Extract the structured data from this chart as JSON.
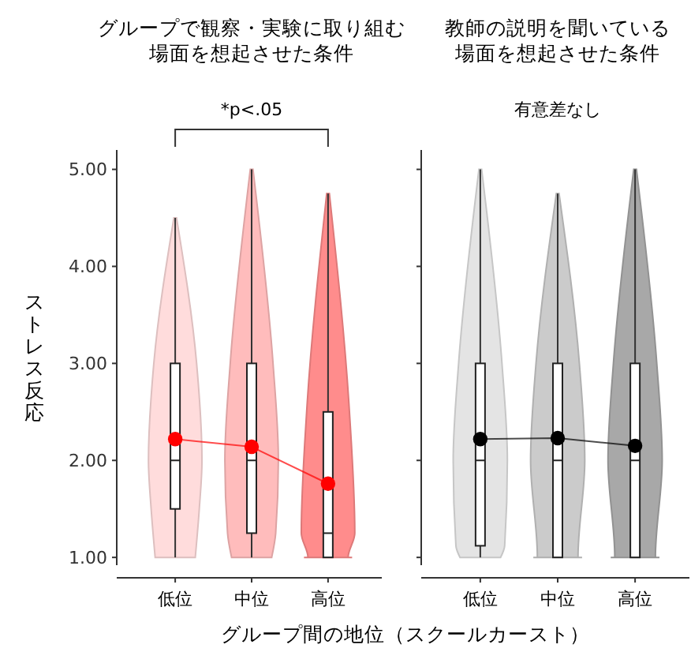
{
  "chart_data": [
    {
      "type": "box",
      "title": "グループで観察・実験に取り組む",
      "subtitle": "場面を想起させた条件",
      "xlabel": "グループ間の地位（スクールカースト）",
      "ylabel": "ストレス反応",
      "categories": [
        "低位",
        "中位",
        "高位"
      ],
      "ylim": [
        0.92,
        5.2
      ],
      "yticks": [
        {
          "value": 1,
          "label": "1.00"
        },
        {
          "value": 2,
          "label": "2.00"
        },
        {
          "value": 3,
          "label": "3.00"
        },
        {
          "value": 4,
          "label": "4.00"
        },
        {
          "value": 5,
          "label": "5.00"
        }
      ],
      "colors": [
        "#ffdcdc",
        "#ffbcbc",
        "#ff8c8c"
      ],
      "annotations": [
        "*p<.05"
      ],
      "series": [
        {
          "boxes": [
            {
              "low": 1,
              "q1": 1.5,
              "median": 2,
              "q3": 3,
              "high": 4.5
            },
            {
              "low": 1,
              "q1": 1.25,
              "median": 2,
              "q3": 3,
              "high": 5
            },
            {
              "low": 1,
              "q1": 1,
              "median": 1.25,
              "q3": 2.5,
              "high": 4.75
            }
          ]
        },
        {
          "type": "line",
          "color": "#ff0000",
          "marker": "circle",
          "values": [
            2.22,
            2.14,
            1.76
          ]
        }
      ]
    },
    {
      "type": "box",
      "title": "教師の説明を聞いている",
      "subtitle": "場面を想起させた条件",
      "categories": [
        "低位",
        "中位",
        "高位"
      ],
      "ylim": [
        0.92,
        5.2
      ],
      "yticks": [
        1,
        2,
        3,
        4,
        5
      ],
      "tick_labels": "x",
      "colors": [
        "#e4e4e4",
        "#cbcbcb",
        "#a8a8a8"
      ],
      "annotations": [
        "有意差なし"
      ],
      "series": [
        {
          "boxes": [
            {
              "low": 1,
              "q1": 1.12,
              "median": 2,
              "q3": 3,
              "high": 5
            },
            {
              "low": 1,
              "q1": 1,
              "median": 2,
              "q3": 3,
              "high": 4.75
            },
            {
              "low": 1,
              "q1": 1,
              "median": 2,
              "q3": 3,
              "high": 5
            }
          ]
        },
        {
          "type": "line",
          "color": "#000000",
          "marker": "circle",
          "values": [
            2.22,
            2.23,
            2.15
          ]
        }
      ]
    }
  ]
}
